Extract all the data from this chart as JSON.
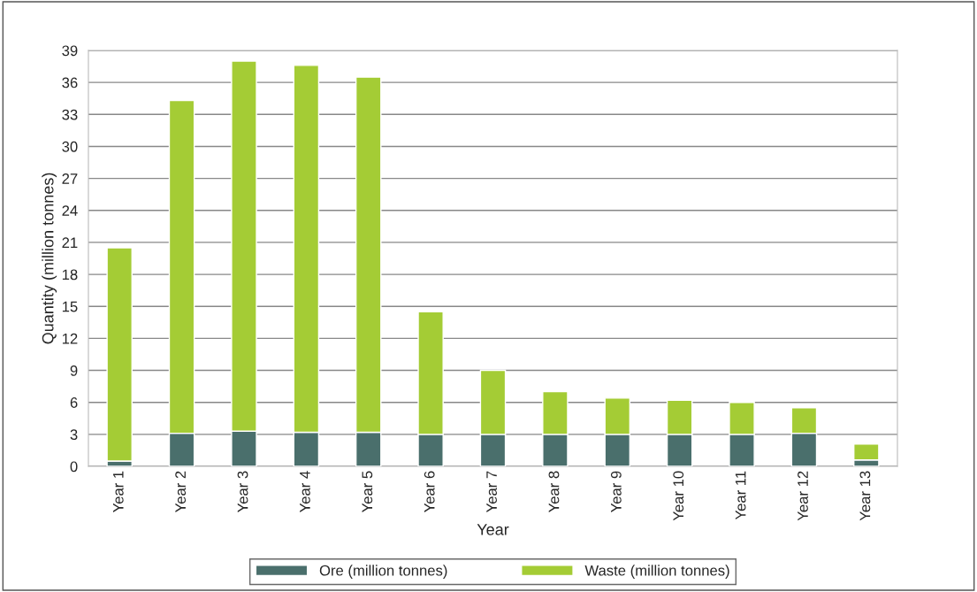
{
  "chart_data": {
    "type": "bar",
    "stacked": true,
    "xlabel": "Year",
    "ylabel": "Quantity (million tonnes)",
    "categories": [
      "Year 1",
      "Year 2",
      "Year 3",
      "Year 4",
      "Year 5",
      "Year 6",
      "Year 7",
      "Year 8",
      "Year 9",
      "Year 10",
      "Year 11",
      "Year 12",
      "Year 13"
    ],
    "series": [
      {
        "name": "Ore (million tonnes)",
        "color": "#4a6f6c",
        "values": [
          0.5,
          3.1,
          3.3,
          3.2,
          3.2,
          3.0,
          3.0,
          3.0,
          3.0,
          3.0,
          3.0,
          3.1,
          0.6
        ]
      },
      {
        "name": "Waste (million tonnes)",
        "color": "#a4cc35",
        "values": [
          20.0,
          31.2,
          34.7,
          34.4,
          33.3,
          11.5,
          6.0,
          4.0,
          3.4,
          3.2,
          3.0,
          2.4,
          1.5
        ]
      }
    ],
    "ylim": [
      0,
      39
    ],
    "yticks": [
      0,
      3,
      6,
      9,
      12,
      15,
      18,
      21,
      24,
      27,
      30,
      33,
      36,
      39
    ],
    "grid": "y",
    "legend": "bottom"
  }
}
